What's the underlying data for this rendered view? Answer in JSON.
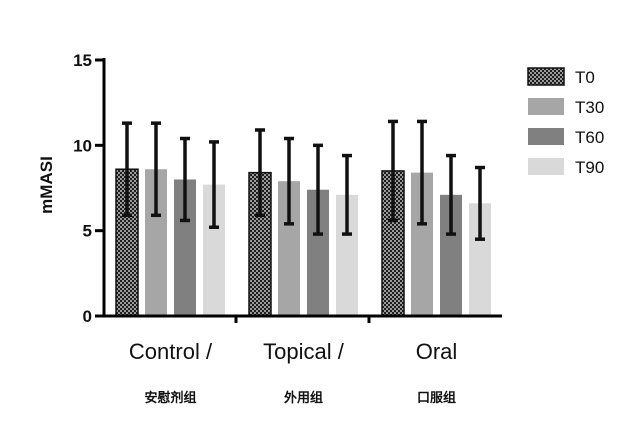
{
  "chart_data": {
    "type": "bar",
    "ylabel": "mMASI",
    "xlabel": "",
    "title": "",
    "ylim": [
      0,
      15
    ],
    "yticks": [
      0,
      5,
      10,
      15
    ],
    "legend_position": "top-right",
    "categories": [
      {
        "label": "Control /",
        "sublabel": "安慰剂组"
      },
      {
        "label": "Topical /",
        "sublabel": "外用组"
      },
      {
        "label": "Oral",
        "sublabel": "口服组"
      }
    ],
    "series": [
      {
        "name": "T0",
        "color": "#222222",
        "pattern": "checker",
        "values": [
          8.6,
          8.4,
          8.5
        ],
        "errors": [
          2.7,
          2.5,
          2.9
        ]
      },
      {
        "name": "T30",
        "color": "#a6a6a6",
        "pattern": "solid",
        "values": [
          8.6,
          7.9,
          8.4
        ],
        "errors": [
          2.7,
          2.5,
          3.0
        ]
      },
      {
        "name": "T60",
        "color": "#808080",
        "pattern": "solid",
        "values": [
          8.0,
          7.4,
          7.1
        ],
        "errors": [
          2.4,
          2.6,
          2.3
        ]
      },
      {
        "name": "T90",
        "color": "#d9d9d9",
        "pattern": "solid",
        "values": [
          7.7,
          7.1,
          6.6
        ],
        "errors": [
          2.5,
          2.3,
          2.1
        ]
      }
    ]
  }
}
